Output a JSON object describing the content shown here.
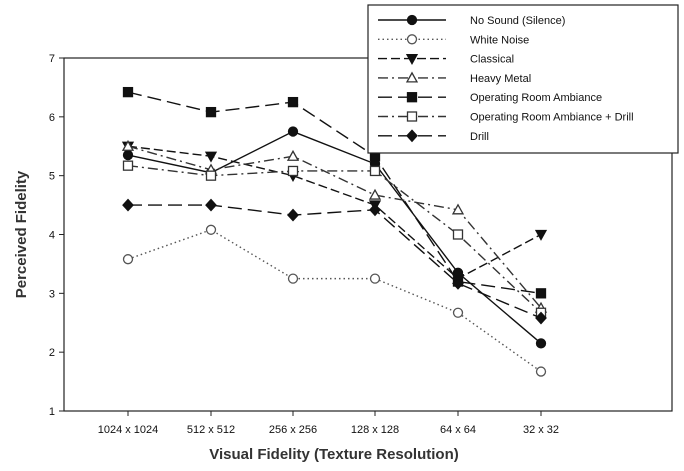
{
  "chart_data": {
    "type": "line",
    "xlabel": "Visual Fidelity (Texture Resolution)",
    "ylabel": "Perceived Fidelity",
    "categories": [
      "1024 x 1024",
      "512 x 512",
      "256 x 256",
      "128 x 128",
      "64 x 64",
      "32 x 32"
    ],
    "ylim": [
      1,
      7
    ],
    "yticks": [
      1,
      2,
      3,
      4,
      5,
      6,
      7
    ],
    "grid": false,
    "legend_position": "top-right",
    "series": [
      {
        "name": "No Sound (Silence)",
        "values": [
          5.35,
          5.05,
          5.75,
          5.2,
          3.35,
          2.15
        ],
        "marker": "filled-circle",
        "dash": "solid",
        "color": "#111111"
      },
      {
        "name": "White Noise",
        "values": [
          3.58,
          4.08,
          3.25,
          3.25,
          2.67,
          1.67
        ],
        "marker": "open-circle",
        "dash": "dotted",
        "color": "#555555"
      },
      {
        "name": "Classical",
        "values": [
          5.5,
          5.33,
          5.0,
          4.5,
          3.25,
          4.0
        ],
        "marker": "filled-triangle-down",
        "dash": "dashed",
        "color": "#111111"
      },
      {
        "name": "Heavy Metal",
        "values": [
          5.5,
          5.1,
          5.33,
          4.67,
          4.42,
          2.75
        ],
        "marker": "open-triangle-up",
        "dash": "dash-dot",
        "color": "#333333"
      },
      {
        "name": "Operating Room Ambiance",
        "values": [
          6.42,
          6.08,
          6.25,
          5.33,
          3.2,
          3.0
        ],
        "marker": "filled-square",
        "dash": "long-dash",
        "color": "#111111"
      },
      {
        "name": "Operating Room Ambiance + Drill",
        "values": [
          5.17,
          5.0,
          5.08,
          5.08,
          4.0,
          2.67
        ],
        "marker": "open-square",
        "dash": "dash-dot",
        "color": "#333333"
      },
      {
        "name": "Drill",
        "values": [
          4.5,
          4.5,
          4.33,
          4.42,
          3.17,
          2.58
        ],
        "marker": "filled-diamond",
        "dash": "long-dash",
        "color": "#111111"
      }
    ]
  }
}
